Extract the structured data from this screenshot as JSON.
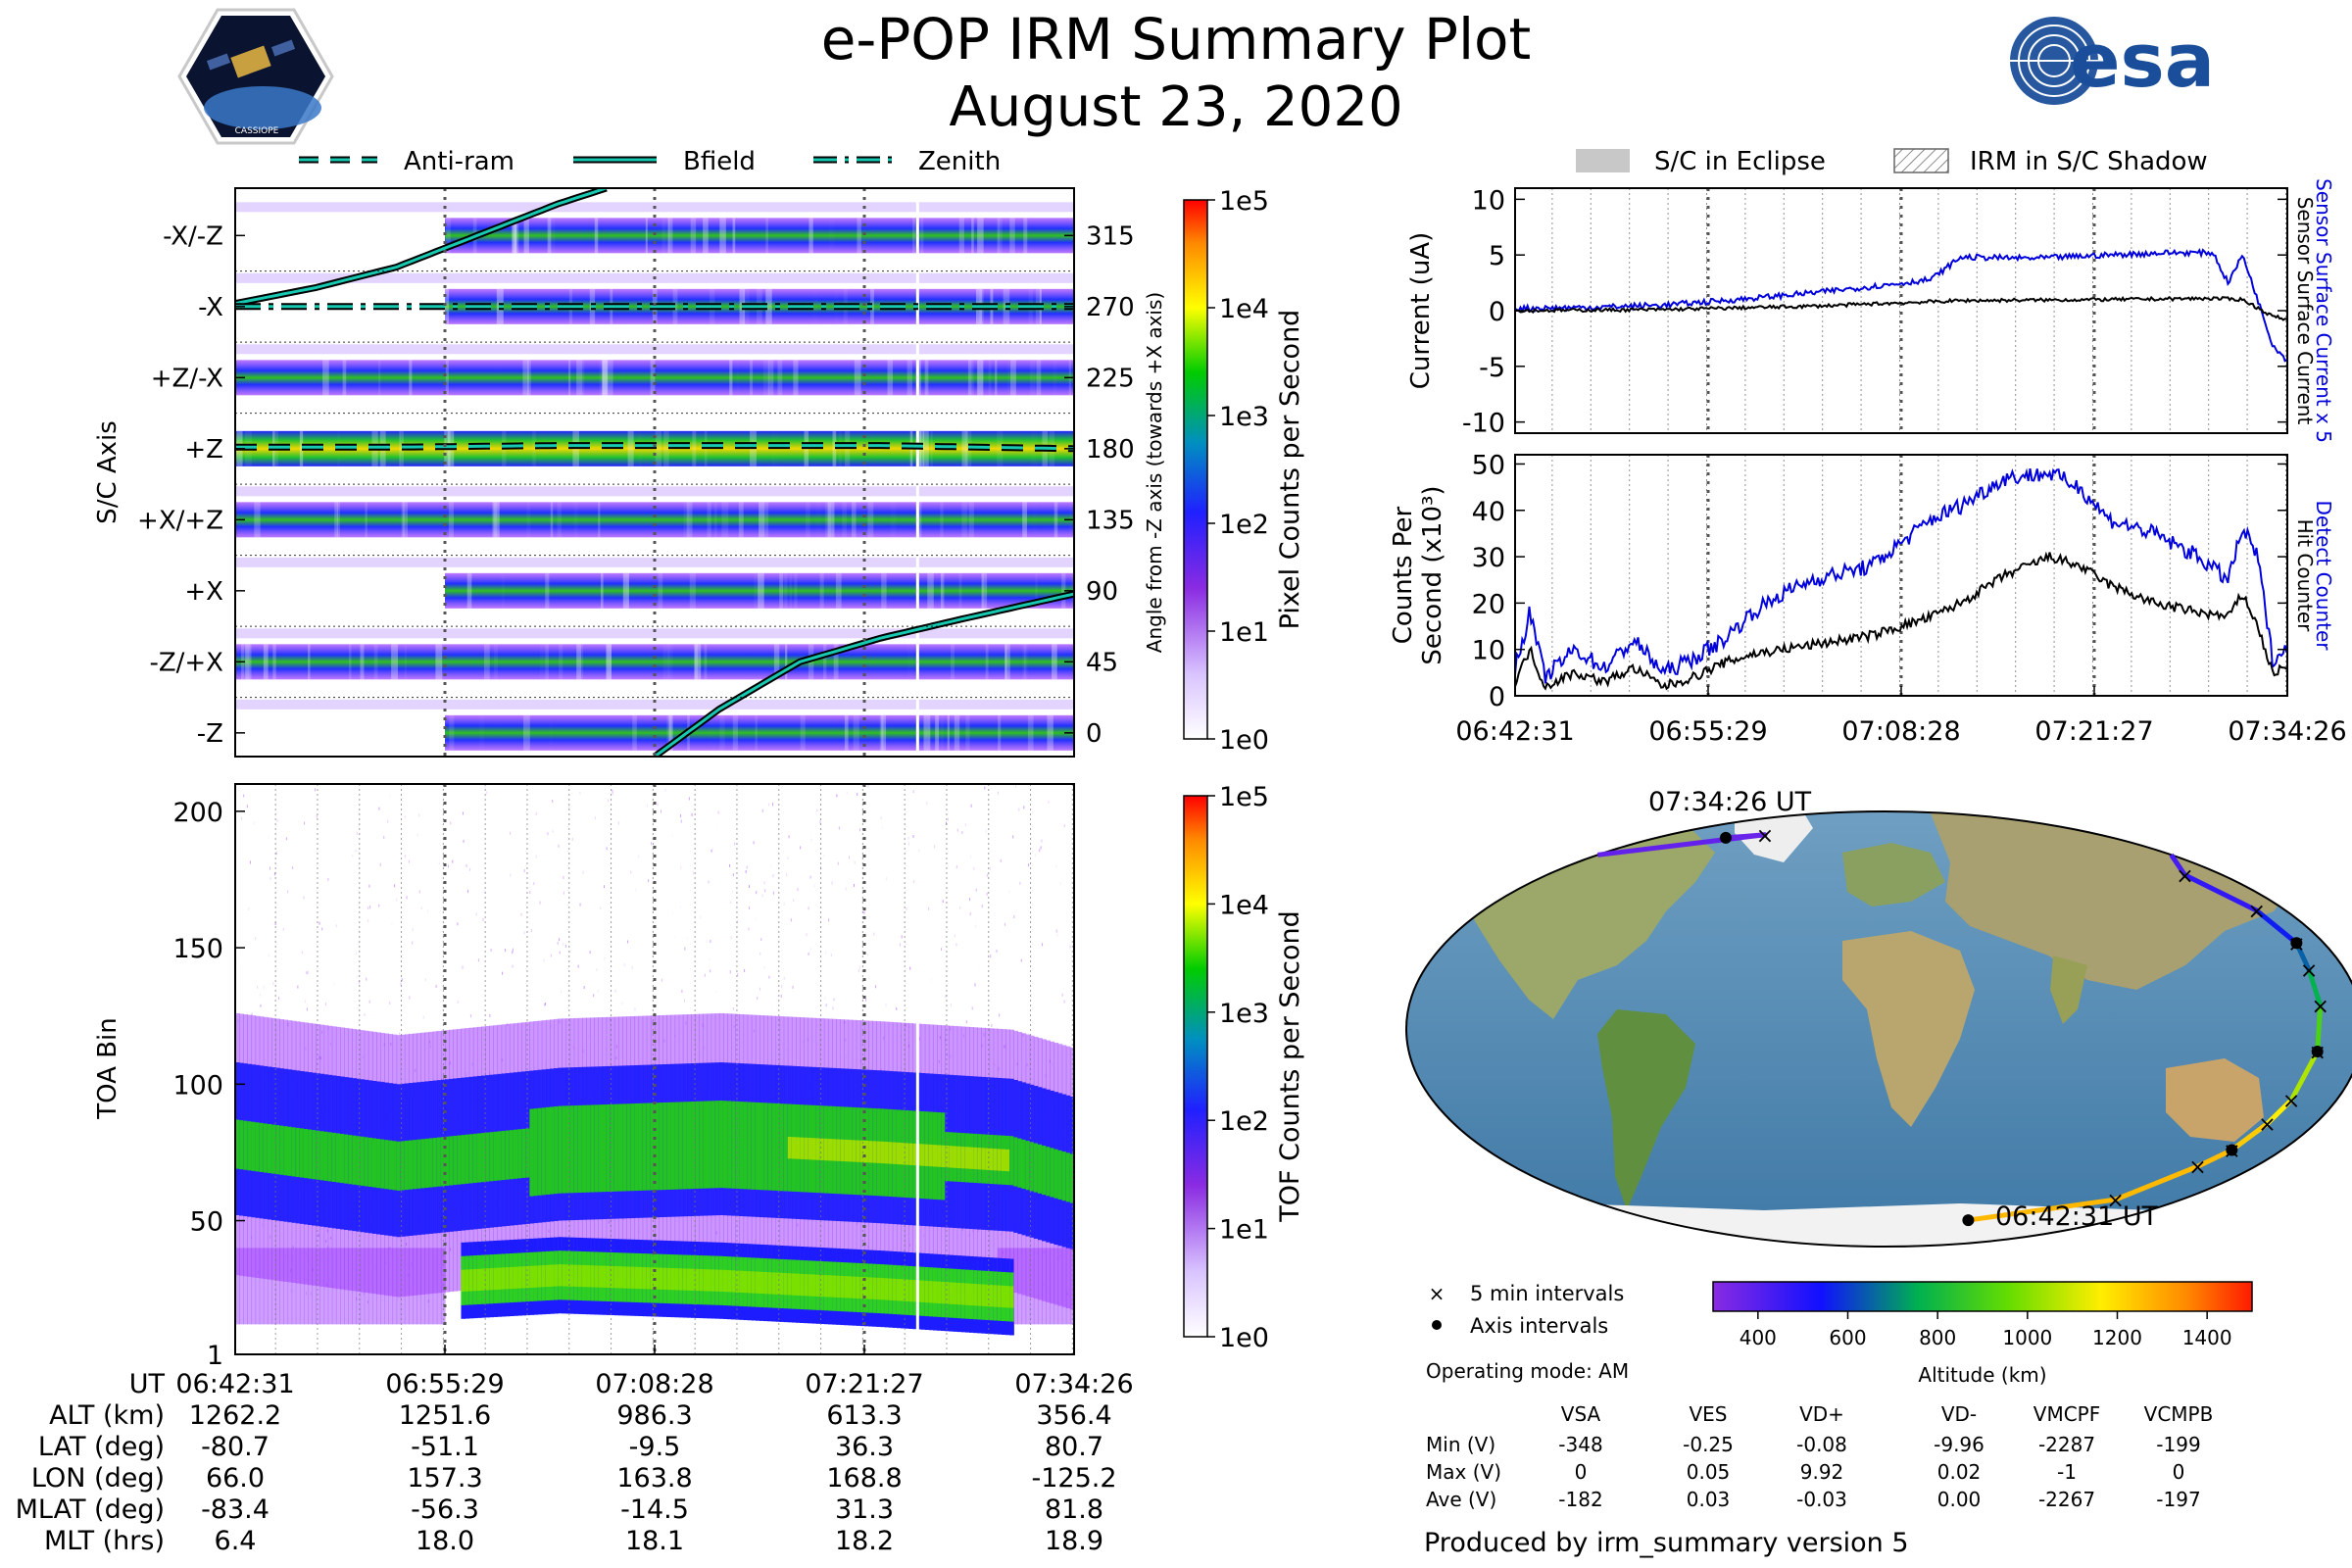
{
  "title": {
    "line1": "e-POP IRM Summary Plot",
    "line2": "August 23, 2020"
  },
  "logos": {
    "left_caption": "CASSIOPE",
    "right_text": "esa"
  },
  "colors": {
    "anti_ram": "#17c9b0",
    "bfield": "#17c9b0",
    "current_sensor": "#0000dd",
    "current_surface": "#000000",
    "orbit_marker": "#000000"
  },
  "left_legend": {
    "items": [
      "Anti-ram",
      "Bfield",
      "Zenith"
    ]
  },
  "right_legend": {
    "items": [
      "S/C in Eclipse",
      "IRM in S/C Shadow"
    ]
  },
  "time_axis": {
    "labels": [
      "06:42:31",
      "06:55:29",
      "07:08:28",
      "07:21:27",
      "07:34:26"
    ]
  },
  "chart_data": [
    {
      "type": "heatmap",
      "id": "sc-axis-panel",
      "ylabel": "S/C Axis",
      "ylabel_right": "Angle from -Z axis (towards +X axis)",
      "axis_labels": [
        "-X/-Z",
        "-X",
        "+Z/-X",
        "+Z",
        "+X/+Z",
        "+X",
        "-Z/+X",
        "-Z"
      ],
      "angle_ticks": [
        "315",
        "270",
        "225",
        "180",
        "135",
        "90",
        "45",
        "0"
      ],
      "ylim": [
        -15,
        345
      ],
      "colorbar": {
        "label": "Pixel Counts per Second",
        "ticks": [
          "1e5",
          "1e4",
          "1e3",
          "1e2",
          "1e1",
          "1e0"
        ],
        "scale": "log",
        "range": [
          1,
          100000
        ]
      },
      "series": [
        {
          "name": "Anti-ram",
          "x_minutes": [
            0,
            10,
            20,
            30,
            40,
            52
          ],
          "angle_deg": [
            181,
            181,
            182,
            182,
            182,
            180
          ]
        },
        {
          "name": "Bfield",
          "x_minutes": [
            0,
            5,
            10,
            15,
            20,
            23
          ],
          "angle_deg": [
            272,
            282,
            295,
            315,
            335,
            345
          ]
        },
        {
          "name": "Bfield",
          "x_minutes": [
            26,
            30,
            35,
            40,
            45,
            52
          ],
          "angle_deg": [
            -15,
            15,
            45,
            60,
            72,
            88
          ]
        },
        {
          "name": "Zenith",
          "x_minutes": [
            0,
            10,
            20,
            30,
            40,
            52
          ],
          "angle_deg": [
            270,
            270,
            270,
            270,
            270,
            270
          ]
        }
      ]
    },
    {
      "type": "heatmap",
      "id": "toa-panel",
      "ylabel": "TOA Bin",
      "yticks": [
        "200",
        "150",
        "100",
        "50",
        "1"
      ],
      "ylim": [
        1,
        210
      ],
      "colorbar": {
        "label": "TOF Counts per Second",
        "ticks": [
          "1e5",
          "1e4",
          "1e3",
          "1e2",
          "1e1",
          "1e0"
        ],
        "scale": "log",
        "range": [
          1,
          100000
        ]
      },
      "bands": [
        {
          "name": "upper band",
          "x_minutes": [
            0,
            10,
            20,
            30,
            40,
            48,
            52
          ],
          "center": [
            78,
            70,
            76,
            78,
            75,
            72,
            65
          ]
        },
        {
          "name": "lower band",
          "x_minutes": [
            14,
            20,
            30,
            40,
            48
          ],
          "center": [
            28,
            30,
            28,
            25,
            22
          ]
        }
      ]
    },
    {
      "type": "line",
      "id": "current-panel",
      "ylabel": "Current (uA)",
      "ylabel_right": [
        "Sensor Surface Current x 5",
        "Sensor Surface Current"
      ],
      "yticks": [
        "10",
        "5",
        "0",
        "-5",
        "-10"
      ],
      "ylim": [
        -11,
        11
      ],
      "series": [
        {
          "name": "Sensor Surface Current x 5",
          "x_minutes": [
            0,
            5,
            10,
            15,
            20,
            25,
            28,
            30,
            35,
            40,
            44,
            47,
            48,
            49,
            50,
            51,
            52
          ],
          "values": [
            0.2,
            0.3,
            0.5,
            1.0,
            1.6,
            2.3,
            2.8,
            4.8,
            4.7,
            5.0,
            5.2,
            5.2,
            2.5,
            5.0,
            1.0,
            -3.0,
            -4.5
          ]
        },
        {
          "name": "Sensor Surface Current",
          "x_minutes": [
            0,
            10,
            20,
            30,
            40,
            47,
            49,
            51,
            52
          ],
          "values": [
            0.0,
            0.1,
            0.4,
            0.9,
            1.0,
            1.1,
            1.0,
            -0.5,
            -0.8
          ]
        }
      ]
    },
    {
      "type": "line",
      "id": "counter-panel",
      "ylabel": [
        "Counts Per",
        "Second (x10³)"
      ],
      "ylabel_right": [
        "Detect Counter",
        "Hit Counter"
      ],
      "yticks": [
        "50",
        "40",
        "30",
        "20",
        "10",
        "0"
      ],
      "ylim": [
        0,
        52
      ],
      "xlabels": [
        "06:42:31",
        "06:55:29",
        "07:08:28",
        "07:21:27",
        "07:34:26"
      ],
      "series": [
        {
          "name": "Detect Counter",
          "x_minutes": [
            0,
            1,
            2,
            4,
            6,
            8,
            10,
            12,
            14,
            16,
            18,
            20,
            24,
            28,
            30,
            33,
            36,
            38,
            40,
            43,
            46,
            48,
            49,
            50,
            51,
            52
          ],
          "values": [
            6,
            18,
            4,
            10,
            6,
            12,
            5,
            8,
            12,
            18,
            22,
            25,
            28,
            38,
            41,
            47,
            48,
            45,
            38,
            35,
            30,
            25,
            36,
            30,
            8,
            10
          ]
        },
        {
          "name": "Hit Counter",
          "x_minutes": [
            0,
            1,
            2,
            4,
            6,
            8,
            10,
            12,
            14,
            16,
            18,
            20,
            24,
            28,
            30,
            33,
            36,
            38,
            40,
            43,
            46,
            48,
            49,
            50,
            51,
            52
          ],
          "values": [
            3,
            10,
            2,
            5,
            3,
            6,
            2,
            4,
            7,
            9,
            10,
            11,
            13,
            17,
            20,
            26,
            30,
            28,
            24,
            20,
            18,
            17,
            22,
            15,
            5,
            6
          ]
        }
      ]
    },
    {
      "type": "scatter",
      "id": "orbit-map",
      "colorbar": {
        "label": "Altitude (km)",
        "ticks": [
          "400",
          "600",
          "800",
          "1000",
          "1200",
          "1400"
        ],
        "range": [
          300,
          1500
        ]
      },
      "track": [
        {
          "lon": 66.0,
          "lat": -80.7,
          "alt": 1262
        },
        {
          "lon": 140,
          "lat": -72,
          "alt": 1260
        },
        {
          "lon": 152,
          "lat": -58,
          "alt": 1255
        },
        {
          "lon": 157.3,
          "lat": -51.1,
          "alt": 1252
        },
        {
          "lon": 160,
          "lat": -40,
          "alt": 1200
        },
        {
          "lon": 162,
          "lat": -30,
          "alt": 1120
        },
        {
          "lon": 163.8,
          "lat": -9.5,
          "alt": 986
        },
        {
          "lon": 165,
          "lat": 10,
          "alt": 830
        },
        {
          "lon": 166,
          "lat": 25,
          "alt": 700
        },
        {
          "lon": 168.8,
          "lat": 36.3,
          "alt": 613
        },
        {
          "lon": 167,
          "lat": 50,
          "alt": 520
        },
        {
          "lon": 160,
          "lat": 65,
          "alt": 440
        },
        {
          "lon": -100,
          "lat": 82,
          "alt": 380
        },
        {
          "lon": -125.2,
          "lat": 80.7,
          "alt": 356
        }
      ],
      "start_label": "06:42:31 UT",
      "end_label": "07:34:26 UT"
    }
  ],
  "map_legend": {
    "five_min": "5 min intervals",
    "axis": "Axis intervals",
    "operating_mode": "Operating mode: AM"
  },
  "ephemeris": {
    "headers": [
      "UT",
      "ALT (km)",
      "LAT (deg)",
      "LON (deg)",
      "MLAT (deg)",
      "MLT (hrs)"
    ],
    "rows": [
      {
        "ut": "06:42:31",
        "alt": "1262.2",
        "lat": "-80.7",
        "lon": "66.0",
        "mlat": "-83.4",
        "mlt": "6.4"
      },
      {
        "ut": "06:55:29",
        "alt": "1251.6",
        "lat": "-51.1",
        "lon": "157.3",
        "mlat": "-56.3",
        "mlt": "18.0"
      },
      {
        "ut": "07:08:28",
        "alt": "986.3",
        "lat": "-9.5",
        "lon": "163.8",
        "mlat": "-14.5",
        "mlt": "18.1"
      },
      {
        "ut": "07:21:27",
        "alt": "613.3",
        "lat": "36.3",
        "lon": "168.8",
        "mlat": "31.3",
        "mlt": "18.2"
      },
      {
        "ut": "07:34:26",
        "alt": "356.4",
        "lat": "80.7",
        "lon": "-125.2",
        "mlat": "81.8",
        "mlt": "18.9"
      }
    ]
  },
  "voltage_table": {
    "columns": [
      "VSA",
      "VES",
      "VD+",
      "VD-",
      "VMCPF",
      "VCMPB"
    ],
    "rows": [
      {
        "label": "Min (V)",
        "values": [
          "-348",
          "-0.25",
          "-0.08",
          "-9.96",
          "-2287",
          "-199"
        ]
      },
      {
        "label": "Max (V)",
        "values": [
          "0",
          "0.05",
          "9.92",
          "0.02",
          "-1",
          "0"
        ]
      },
      {
        "label": "Ave (V)",
        "values": [
          "-182",
          "0.03",
          "-0.03",
          "0.00",
          "-2267",
          "-197"
        ]
      }
    ]
  },
  "footer": "Produced by irm_summary version 5"
}
